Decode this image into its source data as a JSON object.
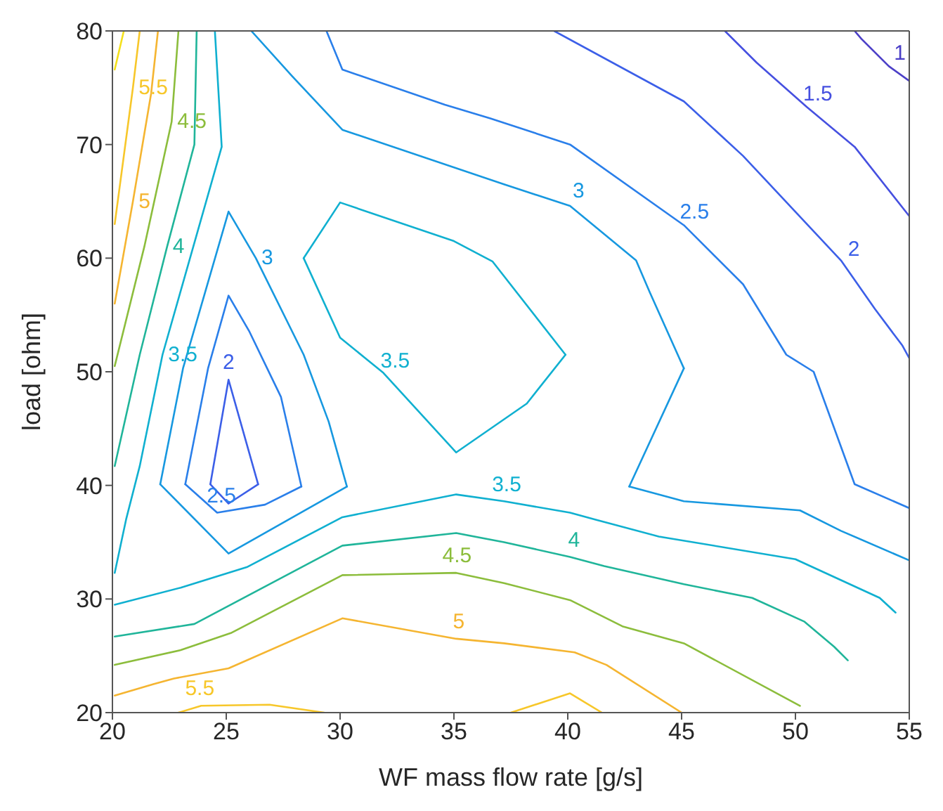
{
  "chart_data": {
    "type": "line",
    "xlabel": "WF mass flow rate [g/s]",
    "ylabel": "load [ohm]",
    "xlim": [
      20,
      55
    ],
    "xticks": [
      20,
      25,
      30,
      35,
      40,
      45,
      50,
      55
    ],
    "ylim": [
      20,
      80
    ],
    "yticks": [
      20,
      30,
      40,
      50,
      60,
      70,
      80
    ],
    "marker": "none",
    "series": [
      {
        "color": "#f4e01c",
        "x": [
          20.5,
          20.1
        ],
        "values": [
          80,
          76.6
        ]
      },
      {
        "name": "5.5",
        "color": "#f7c72a",
        "x": [
          21.2,
          20.9,
          20.5,
          20.1
        ],
        "values": [
          80,
          75,
          69,
          63
        ]
      },
      {
        "name": "5",
        "color": "#f5b531",
        "x": [
          22,
          21.7,
          20.9,
          20.1
        ],
        "values": [
          80,
          74.5,
          65,
          56
        ]
      },
      {
        "name": "4.5",
        "color": "#8cbd3c",
        "x": [
          22.9,
          22.6,
          21.4,
          20.1
        ],
        "values": [
          80,
          72,
          61,
          50.5
        ]
      },
      {
        "name": "4",
        "color": "#20b59a",
        "x": [
          23.7,
          23.6,
          22.4,
          21.2,
          20.1
        ],
        "values": [
          80,
          70,
          61,
          51.5,
          41.7
        ]
      },
      {
        "name": "3.5",
        "color": "#10b0d0",
        "x": [
          24.5,
          24.8,
          22.2,
          21.2,
          20.6,
          20.1
        ],
        "values": [
          80,
          69.8,
          51.5,
          41.7,
          37,
          32.3
        ]
      },
      {
        "name": "3",
        "color": "#1798e0",
        "x": [
          22.1,
          23.1,
          25.1,
          26.3,
          28.4,
          29.5,
          30.3
        ],
        "values": [
          40.1,
          50.3,
          64.1,
          60,
          51.5,
          45.6,
          39.9
        ]
      },
      {
        "color": "#1798e0",
        "x": [
          22.1,
          25.1,
          30.3
        ],
        "values": [
          40.1,
          34,
          39.9
        ]
      },
      {
        "color": "#2a7fea",
        "x": [
          23.2,
          24.2,
          25.1,
          26,
          27.4,
          28.3
        ],
        "values": [
          40.1,
          50.3,
          56.7,
          53.6,
          47.8,
          39.9
        ]
      },
      {
        "name": "2.5",
        "color": "#2a7fea",
        "x": [
          23.2,
          24.6,
          26.7,
          28.3
        ],
        "values": [
          40.1,
          37.6,
          38.3,
          39.9
        ]
      },
      {
        "name": "2",
        "color": "#3c5fe8",
        "x": [
          24.3,
          25.1,
          26.4
        ],
        "values": [
          40.1,
          49.3,
          40.1
        ]
      },
      {
        "color": "#3c5fe8",
        "x": [
          24.3,
          25.1,
          26.4
        ],
        "values": [
          40.1,
          38.4,
          40.1
        ]
      },
      {
        "color": "#10b0d0",
        "x": [
          28.4,
          30,
          35,
          36.7,
          39.9
        ],
        "values": [
          60,
          64.9,
          61.5,
          59.7,
          51.5
        ]
      },
      {
        "name": "3.5",
        "color": "#10b0d0",
        "x": [
          28.4,
          30,
          31.9,
          35.1,
          38.2,
          39.9
        ],
        "values": [
          60,
          53,
          49.9,
          42.9,
          47.2,
          51.5
        ]
      },
      {
        "name": "3",
        "color": "#1798e0",
        "x": [
          26.1,
          27.9,
          30.1,
          37.2,
          40.1,
          43,
          43.6,
          45.1
        ],
        "values": [
          80,
          76,
          71.3,
          66.5,
          64.6,
          59.8,
          57,
          50.3
        ]
      },
      {
        "color": "#1798e0",
        "x": [
          45.1,
          42.7
        ],
        "values": [
          50.3,
          39.9
        ]
      },
      {
        "color": "#1798e0",
        "x": [
          42.7,
          45.1,
          50.2,
          52,
          55
        ],
        "values": [
          39.9,
          38.6,
          37.8,
          36,
          33.4
        ]
      },
      {
        "name": "2.5",
        "color": "#2a7fea",
        "x": [
          29.4,
          30.1,
          34.6,
          36.6,
          40.1,
          45.1,
          47.7,
          49.6,
          50.8,
          52.6,
          55
        ],
        "values": [
          80,
          76.6,
          73.5,
          72.3,
          70,
          62.9,
          57.7,
          51.5,
          50,
          40.1,
          38
        ]
      },
      {
        "name": "2",
        "color": "#3c5fe8",
        "x": [
          39.4,
          45.1,
          47.7,
          52,
          53.5,
          54.7,
          55
        ],
        "values": [
          80,
          73.8,
          69,
          59.8,
          55.5,
          52.3,
          51.2
        ]
      },
      {
        "name": "1.5",
        "color": "#4650e0",
        "x": [
          46.9,
          48.3,
          50.5,
          52.6,
          55
        ],
        "values": [
          80,
          77.2,
          73.3,
          69.8,
          63.7
        ]
      },
      {
        "name": "1",
        "color": "#4b3fc7",
        "x": [
          52.6,
          52.9,
          54.1,
          55
        ],
        "values": [
          80,
          79.3,
          76.9,
          75.6
        ]
      },
      {
        "name": "3.5",
        "color": "#10b0d0",
        "x": [
          20.1,
          23,
          25.9,
          30.1,
          35.1,
          37.2,
          40.1,
          41.2,
          44,
          50,
          53.7,
          54.4
        ],
        "values": [
          29.5,
          31,
          32.8,
          37.2,
          39.2,
          38.6,
          37.6,
          37,
          35.5,
          33.5,
          30.1,
          28.8
        ]
      },
      {
        "name": "4",
        "color": "#20b59a",
        "x": [
          20.1,
          23.6,
          25.1,
          30.1,
          35.1,
          37.2,
          40.1,
          41.6,
          45.1,
          48.1,
          50.4,
          51.7,
          52.3
        ],
        "values": [
          26.7,
          27.8,
          29.4,
          34.7,
          35.8,
          35,
          33.7,
          32.9,
          31.3,
          30.1,
          28,
          25.8,
          24.6
        ]
      },
      {
        "name": "4.5",
        "color": "#8cbd3c",
        "x": [
          20.1,
          23,
          25.2,
          30.1,
          35.1,
          37.2,
          40.1,
          42.4,
          45.1,
          50.2
        ],
        "values": [
          24.2,
          25.5,
          27,
          32.1,
          32.3,
          31.4,
          29.9,
          27.6,
          26.1,
          20.6
        ]
      },
      {
        "name": "5",
        "color": "#f5b531",
        "x": [
          20.1,
          21.8,
          22.7,
          25.1,
          30.1,
          35.1,
          37.2,
          40.3,
          41.7,
          45
        ],
        "values": [
          21.5,
          22.5,
          23,
          23.9,
          28.3,
          26.5,
          26.1,
          25.3,
          24.2,
          20
        ]
      },
      {
        "name": "5.5",
        "color": "#f7c72a",
        "x": [
          22.9,
          23.9,
          26.9,
          29.3
        ],
        "values": [
          20,
          20.6,
          20.7,
          20
        ]
      },
      {
        "color": "#f7c72a",
        "x": [
          37.5,
          40.1,
          41.5
        ],
        "values": [
          20,
          21.7,
          20
        ]
      }
    ]
  }
}
